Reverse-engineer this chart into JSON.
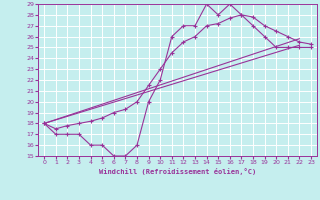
{
  "xlabel": "Windchill (Refroidissement éolien,°C)",
  "xlim": [
    -0.5,
    23.5
  ],
  "ylim": [
    15,
    29
  ],
  "xticks": [
    0,
    1,
    2,
    3,
    4,
    5,
    6,
    7,
    8,
    9,
    10,
    11,
    12,
    13,
    14,
    15,
    16,
    17,
    18,
    19,
    20,
    21,
    22,
    23
  ],
  "yticks": [
    15,
    16,
    17,
    18,
    19,
    20,
    21,
    22,
    23,
    24,
    25,
    26,
    27,
    28,
    29
  ],
  "bg_color": "#c5eeee",
  "grid_color": "#ffffff",
  "line_color": "#993399",
  "line1_x": [
    0,
    1,
    2,
    3,
    4,
    5,
    6,
    7,
    8,
    9,
    10,
    11,
    12,
    13,
    14,
    15,
    16,
    17,
    18,
    19,
    20,
    21,
    22,
    23
  ],
  "line1_y": [
    18,
    17,
    17,
    17,
    16,
    16,
    15,
    15,
    16,
    20,
    22,
    26,
    27,
    27,
    29,
    28,
    29,
    28,
    27,
    26,
    25,
    25,
    25,
    25
  ],
  "line2_x": [
    0,
    22
  ],
  "line2_y": [
    18,
    25.2
  ],
  "line3_x": [
    0,
    22
  ],
  "line3_y": [
    18,
    25.8
  ],
  "line4_x": [
    0,
    1,
    2,
    3,
    4,
    5,
    6,
    7,
    8,
    9,
    10,
    11,
    12,
    13,
    14,
    15,
    16,
    17,
    18,
    19,
    20,
    21,
    22,
    23
  ],
  "line4_y": [
    18,
    17.5,
    17.8,
    18,
    18.2,
    18.5,
    19,
    19.3,
    20,
    21.5,
    23,
    24.5,
    25.5,
    26,
    27,
    27.2,
    27.7,
    28,
    27.8,
    27,
    26.5,
    26,
    25.5,
    25.3
  ]
}
